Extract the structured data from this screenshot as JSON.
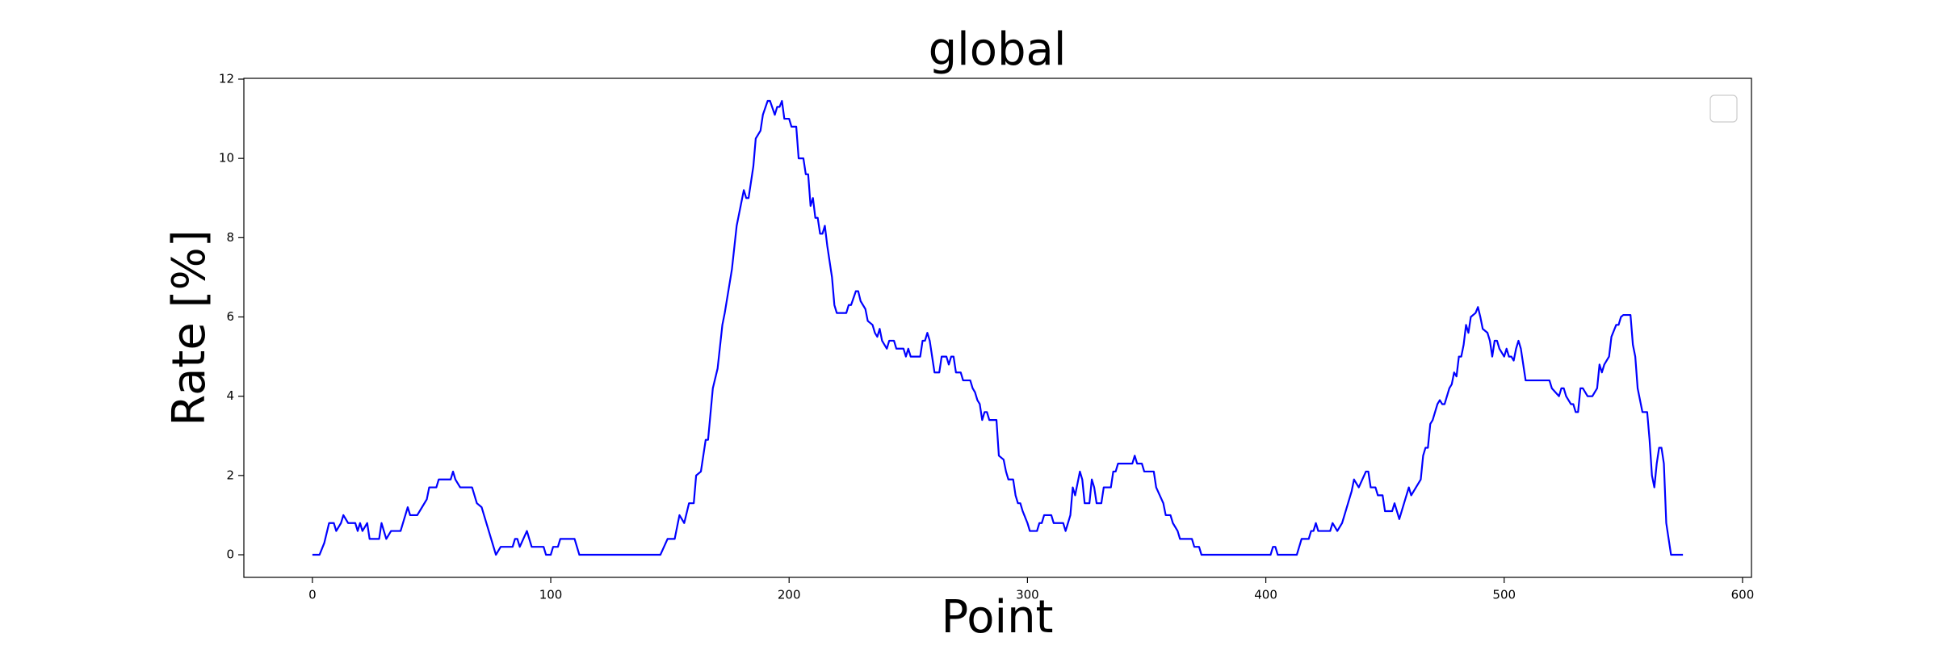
{
  "chart_data": {
    "type": "line",
    "title": "global",
    "x_label": "Point",
    "y_label": "Rate [%]",
    "x": [
      0,
      3,
      5,
      7,
      9,
      10,
      12,
      13,
      15,
      18,
      19,
      20,
      21,
      23,
      24,
      28,
      29,
      31,
      33,
      37,
      39,
      40,
      41,
      44,
      46,
      48,
      49,
      52,
      53,
      58,
      59,
      60,
      62,
      67,
      69,
      71,
      74,
      77,
      79,
      84,
      85,
      86,
      87,
      90,
      91,
      92,
      97,
      98,
      100,
      101,
      103,
      104,
      110,
      112,
      146,
      149,
      152,
      154,
      156,
      158,
      160,
      161,
      163,
      165,
      166,
      168,
      170,
      172,
      173,
      176,
      178,
      180,
      181,
      182,
      183,
      185,
      186,
      187,
      188,
      189,
      191,
      192,
      194,
      195,
      196,
      197,
      198,
      200,
      201,
      203,
      204,
      206,
      207,
      208,
      209,
      210,
      211,
      212,
      213,
      214,
      215,
      216,
      218,
      219,
      220,
      224,
      225,
      226,
      228,
      229,
      230,
      232,
      233,
      235,
      236,
      237,
      238,
      239,
      241,
      242,
      244,
      245,
      248,
      249,
      250,
      251,
      255,
      256,
      257,
      258,
      259,
      261,
      263,
      264,
      266,
      267,
      268,
      269,
      270,
      272,
      273,
      276,
      277,
      278,
      279,
      280,
      281,
      282,
      283,
      284,
      287,
      288,
      290,
      291,
      292,
      294,
      295,
      296,
      297,
      298,
      300,
      301,
      304,
      305,
      306,
      307,
      310,
      311,
      315,
      316,
      318,
      319,
      320,
      322,
      323,
      324,
      326,
      327,
      328,
      329,
      331,
      332,
      335,
      336,
      337,
      338,
      344,
      345,
      346,
      348,
      349,
      353,
      354,
      357,
      358,
      360,
      361,
      363,
      364,
      369,
      370,
      372,
      373,
      402,
      403,
      404,
      405,
      413,
      415,
      418,
      419,
      420,
      421,
      422,
      427,
      428,
      430,
      432,
      434,
      436,
      437,
      439,
      442,
      443,
      444,
      446,
      447,
      449,
      450,
      453,
      454,
      456,
      458,
      460,
      461,
      463,
      465,
      466,
      467,
      468,
      469,
      470,
      472,
      473,
      474,
      475,
      477,
      478,
      479,
      480,
      481,
      482,
      483,
      484,
      485,
      486,
      488,
      489,
      490,
      491,
      493,
      494,
      495,
      496,
      497,
      498,
      500,
      501,
      502,
      503,
      504,
      505,
      506,
      507,
      509,
      519,
      520,
      523,
      524,
      525,
      526,
      528,
      529,
      530,
      531,
      532,
      533,
      535,
      537,
      539,
      540,
      541,
      542,
      544,
      545,
      547,
      548,
      549,
      550,
      553,
      554,
      555,
      556,
      558,
      560,
      561,
      562,
      563,
      564,
      565,
      566,
      567,
      568,
      570,
      575
    ],
    "series": [
      {
        "color": "#0000ff",
        "values": [
          0,
          0,
          0.3,
          0.8,
          0.8,
          0.6,
          0.8,
          1.0,
          0.8,
          0.8,
          0.6,
          0.8,
          0.6,
          0.8,
          0.4,
          0.4,
          0.8,
          0.4,
          0.6,
          0.6,
          1.0,
          1.2,
          1.0,
          1.0,
          1.2,
          1.4,
          1.7,
          1.7,
          1.9,
          1.9,
          2.1,
          1.9,
          1.7,
          1.7,
          1.3,
          1.2,
          0.6,
          0,
          0.2,
          0.2,
          0.4,
          0.4,
          0.2,
          0.6,
          0.4,
          0.2,
          0.2,
          0,
          0,
          0.2,
          0.2,
          0.4,
          0.4,
          0,
          0,
          0.4,
          0.4,
          1.0,
          0.8,
          1.3,
          1.3,
          2.0,
          2.1,
          2.9,
          2.9,
          4.2,
          4.7,
          5.8,
          6.1,
          7.2,
          8.3,
          8.9,
          9.2,
          9.0,
          9.0,
          9.8,
          10.5,
          10.6,
          10.7,
          11.1,
          11.45,
          11.45,
          11.1,
          11.3,
          11.3,
          11.45,
          11.0,
          11.0,
          10.8,
          10.8,
          10.0,
          10.0,
          9.6,
          9.6,
          8.8,
          9.0,
          8.5,
          8.5,
          8.1,
          8.1,
          8.3,
          7.8,
          7.0,
          6.3,
          6.1,
          6.1,
          6.3,
          6.3,
          6.65,
          6.65,
          6.4,
          6.2,
          5.9,
          5.8,
          5.6,
          5.5,
          5.7,
          5.4,
          5.2,
          5.4,
          5.4,
          5.2,
          5.2,
          5.0,
          5.2,
          5.0,
          5.0,
          5.4,
          5.4,
          5.6,
          5.4,
          4.6,
          4.6,
          5.0,
          5.0,
          4.8,
          5.0,
          5.0,
          4.6,
          4.6,
          4.4,
          4.4,
          4.2,
          4.1,
          3.9,
          3.8,
          3.4,
          3.6,
          3.6,
          3.4,
          3.4,
          2.5,
          2.4,
          2.1,
          1.9,
          1.9,
          1.5,
          1.3,
          1.3,
          1.1,
          0.8,
          0.6,
          0.6,
          0.8,
          0.8,
          1.0,
          1.0,
          0.8,
          0.8,
          0.6,
          1.0,
          1.7,
          1.5,
          2.1,
          1.9,
          1.3,
          1.3,
          1.9,
          1.7,
          1.3,
          1.3,
          1.7,
          1.7,
          2.1,
          2.1,
          2.3,
          2.3,
          2.5,
          2.3,
          2.3,
          2.1,
          2.1,
          1.7,
          1.3,
          1.0,
          1.0,
          0.8,
          0.6,
          0.4,
          0.4,
          0.2,
          0.2,
          0,
          0,
          0.2,
          0.2,
          0,
          0,
          0.4,
          0.4,
          0.6,
          0.6,
          0.8,
          0.6,
          0.6,
          0.8,
          0.6,
          0.8,
          1.2,
          1.6,
          1.9,
          1.7,
          2.1,
          2.1,
          1.7,
          1.7,
          1.5,
          1.5,
          1.1,
          1.1,
          1.3,
          0.9,
          1.3,
          1.7,
          1.5,
          1.7,
          1.9,
          2.5,
          2.7,
          2.7,
          3.3,
          3.4,
          3.8,
          3.9,
          3.8,
          3.8,
          4.2,
          4.3,
          4.6,
          4.5,
          5.0,
          5.0,
          5.3,
          5.8,
          5.6,
          6.0,
          6.1,
          6.25,
          6.0,
          5.7,
          5.6,
          5.4,
          5.0,
          5.4,
          5.4,
          5.2,
          5.0,
          5.2,
          5.0,
          5.0,
          4.9,
          5.2,
          5.4,
          5.2,
          4.4,
          4.4,
          4.2,
          4.0,
          4.2,
          4.2,
          4.0,
          3.8,
          3.8,
          3.6,
          3.6,
          4.2,
          4.2,
          4.0,
          4.0,
          4.2,
          4.8,
          4.6,
          4.8,
          5.0,
          5.5,
          5.8,
          5.8,
          6.0,
          6.05,
          6.05,
          5.3,
          5.0,
          4.2,
          3.6,
          3.6,
          2.9,
          2.0,
          1.7,
          2.3,
          2.7,
          2.7,
          2.3,
          0.8,
          0,
          0
        ]
      }
    ],
    "xlim": [
      -28.75,
      603.75
    ],
    "ylim": [
      -0.57,
      12.02
    ],
    "xticks": [
      0,
      100,
      200,
      300,
      400,
      500,
      600
    ],
    "yticks": [
      0,
      2,
      4,
      6,
      8,
      10,
      12
    ],
    "legend": "upper right"
  }
}
